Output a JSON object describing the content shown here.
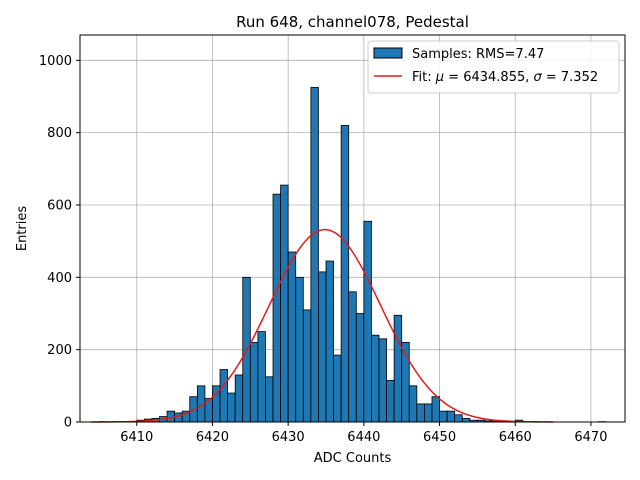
{
  "chart_data": {
    "type": "bar",
    "title": "Run 648, channel078, Pedestal",
    "xlabel": "ADC Counts",
    "ylabel": "Entries",
    "xlim": [
      6402.5,
      6474.5
    ],
    "ylim": [
      0,
      1070
    ],
    "xticks": [
      6410,
      6420,
      6430,
      6440,
      6450,
      6460,
      6470
    ],
    "yticks": [
      0,
      200,
      400,
      600,
      800,
      1000
    ],
    "grid": true,
    "legend_position": "top-right",
    "histogram": {
      "name": "Samples: RMS=7.47",
      "bin_width": 1,
      "bin_start": 6405,
      "values": [
        1,
        0,
        1,
        1,
        0,
        5,
        8,
        10,
        15,
        30,
        25,
        30,
        70,
        100,
        65,
        100,
        145,
        80,
        130,
        400,
        220,
        250,
        125,
        630,
        655,
        470,
        400,
        310,
        925,
        415,
        445,
        185,
        820,
        360,
        300,
        555,
        240,
        230,
        115,
        295,
        220,
        100,
        50,
        50,
        70,
        30,
        30,
        20,
        10,
        5,
        5,
        3,
        2,
        2,
        1,
        5,
        1,
        1,
        0,
        0,
        0,
        0,
        0,
        0,
        0,
        0,
        1
      ],
      "color": "#1f77b4"
    },
    "fit": {
      "name": "Fit: μ = 6434.855, σ = 7.352",
      "mu": 6434.855,
      "sigma": 7.352,
      "amplitude": 532,
      "x_range": [
        6404,
        6465
      ],
      "color": "#e41a1c"
    },
    "legend": {
      "entries": [
        {
          "label_prefix": "Samples: RMS=7.47",
          "kind": "patch"
        },
        {
          "label_parts": [
            "Fit: ",
            "μ",
            " = 6434.855, ",
            "σ",
            " = 7.352"
          ],
          "kind": "line"
        }
      ]
    }
  }
}
